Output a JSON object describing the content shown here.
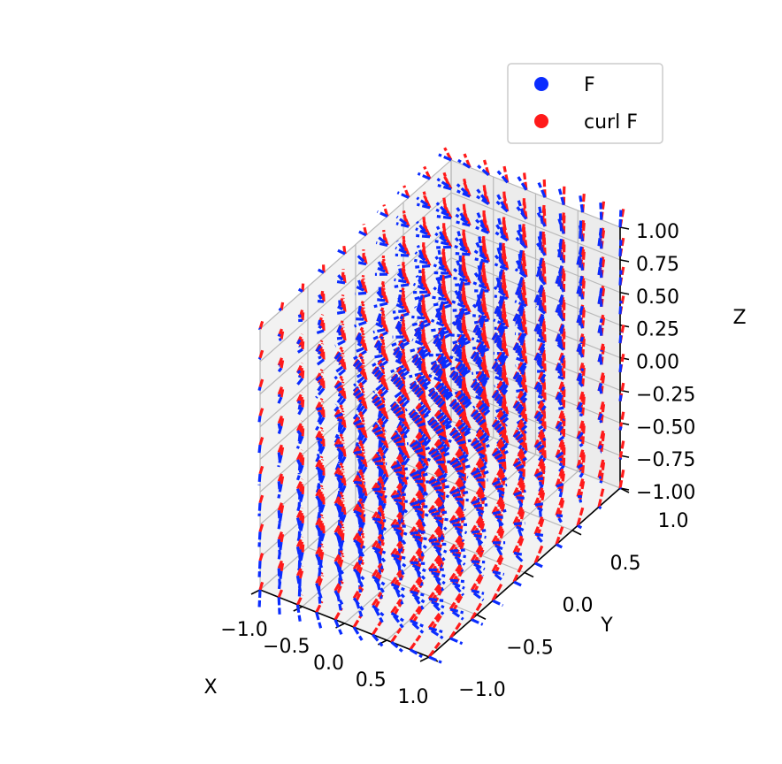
{
  "chart_data": {
    "type": "quiver3d",
    "title": "",
    "xlabel": "X",
    "ylabel": "Y",
    "zlabel": "Z",
    "xlim": [
      -1.0,
      1.0
    ],
    "ylim": [
      -1.0,
      1.0
    ],
    "zlim": [
      -1.0,
      1.0
    ],
    "xticks": [
      "−1.0",
      "−0.5",
      "0.0",
      "0.5",
      "1.0"
    ],
    "yticks": [
      "−1.0",
      "−0.5",
      "0.0",
      "0.5",
      "1.0"
    ],
    "zticks": [
      "−1.00",
      "−0.75",
      "−0.50",
      "−0.25",
      "0.00",
      "0.25",
      "0.50",
      "0.75",
      "1.00"
    ],
    "grid": true,
    "legend_position": "top-right",
    "grid_points_per_axis": 10,
    "series": [
      {
        "name": "F",
        "color": "#0a2cff",
        "field": [
          "-y",
          "x",
          "z"
        ]
      },
      {
        "name": "curl F",
        "color": "#ff1a1a",
        "field": [
          "0",
          "0",
          "2"
        ]
      }
    ]
  }
}
